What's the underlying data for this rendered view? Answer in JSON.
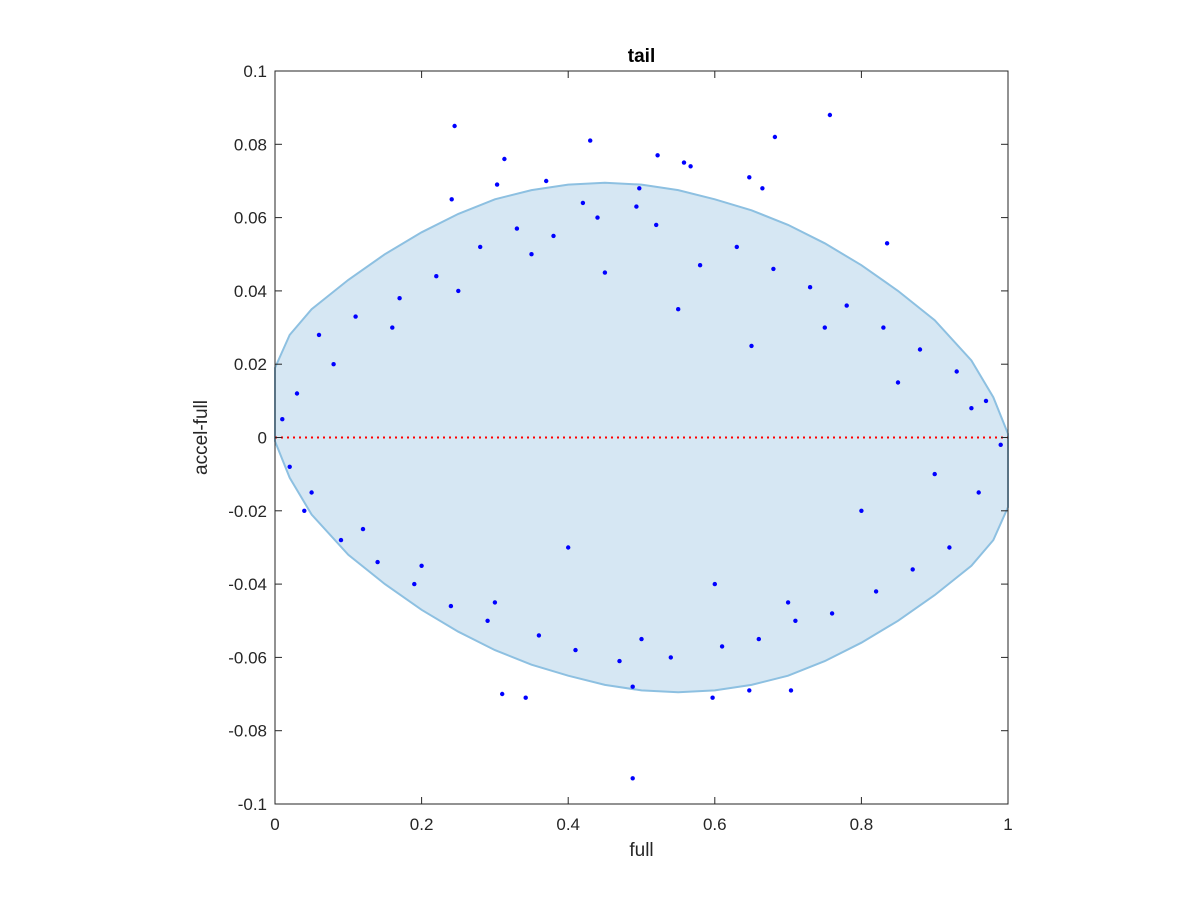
{
  "chart_data": {
    "type": "scatter",
    "title": "tail",
    "xlabel": "full",
    "ylabel": "accel-full",
    "xlim": [
      0,
      1
    ],
    "ylim": [
      -0.1,
      0.1
    ],
    "xticks": [
      0,
      0.2,
      0.4,
      0.6,
      0.8,
      1
    ],
    "xtick_labels": [
      "0",
      "0.2",
      "0.4",
      "0.6",
      "0.8",
      "1"
    ],
    "yticks": [
      0.1,
      0.08,
      0.06,
      0.04,
      0.02,
      0,
      -0.02,
      -0.04,
      -0.06,
      -0.08,
      -0.1
    ],
    "ytick_labels": [
      "0.1",
      "0.08",
      "0.06",
      "0.04",
      "0.02",
      "0",
      "-0.02",
      "-0.04",
      "-0.06",
      "-0.08",
      "-0.1"
    ],
    "grid": false,
    "marker_color": "#0000ff",
    "zero_line": {
      "y": 0,
      "color": "#ff0000",
      "style": "dotted"
    },
    "region": {
      "shape": "ellipse",
      "fill": "#d6e7f3",
      "edge": "#8dc0e1",
      "upper_boundary": [
        [
          0,
          0.019
        ],
        [
          0.02,
          0.028
        ],
        [
          0.05,
          0.035
        ],
        [
          0.1,
          0.043
        ],
        [
          0.15,
          0.05
        ],
        [
          0.2,
          0.056
        ],
        [
          0.25,
          0.061
        ],
        [
          0.3,
          0.065
        ],
        [
          0.35,
          0.0675
        ],
        [
          0.4,
          0.069
        ],
        [
          0.45,
          0.0695
        ],
        [
          0.5,
          0.069
        ],
        [
          0.55,
          0.0675
        ],
        [
          0.6,
          0.065
        ],
        [
          0.65,
          0.062
        ],
        [
          0.7,
          0.058
        ],
        [
          0.75,
          0.053
        ],
        [
          0.8,
          0.047
        ],
        [
          0.85,
          0.04
        ],
        [
          0.9,
          0.032
        ],
        [
          0.95,
          0.021
        ],
        [
          0.98,
          0.011
        ],
        [
          1.0,
          0.001
        ]
      ],
      "lower_boundary": [
        [
          1.0,
          -0.019
        ],
        [
          0.98,
          -0.028
        ],
        [
          0.95,
          -0.035
        ],
        [
          0.9,
          -0.043
        ],
        [
          0.85,
          -0.05
        ],
        [
          0.8,
          -0.056
        ],
        [
          0.75,
          -0.061
        ],
        [
          0.7,
          -0.065
        ],
        [
          0.65,
          -0.0675
        ],
        [
          0.6,
          -0.069
        ],
        [
          0.55,
          -0.0695
        ],
        [
          0.5,
          -0.069
        ],
        [
          0.45,
          -0.0675
        ],
        [
          0.4,
          -0.065
        ],
        [
          0.35,
          -0.062
        ],
        [
          0.3,
          -0.058
        ],
        [
          0.25,
          -0.053
        ],
        [
          0.2,
          -0.047
        ],
        [
          0.15,
          -0.04
        ],
        [
          0.1,
          -0.032
        ],
        [
          0.05,
          -0.021
        ],
        [
          0.02,
          -0.011
        ],
        [
          0.0,
          -0.001
        ]
      ]
    },
    "series": [
      {
        "x": [
          0.245,
          0.43,
          0.757,
          0.682,
          0.313,
          0.522,
          0.303,
          0.567,
          0.37,
          0.558,
          0.497,
          0.665,
          0.647,
          0.835,
          0.241,
          0.42,
          0.493,
          0.31,
          0.342,
          0.488,
          0.647,
          0.597,
          0.704,
          0.488,
          0.01,
          0.02,
          0.03,
          0.05,
          0.08,
          0.12,
          0.16,
          0.2,
          0.25,
          0.3,
          0.35,
          0.4,
          0.45,
          0.5,
          0.55,
          0.6,
          0.65,
          0.7,
          0.75,
          0.8,
          0.85,
          0.9,
          0.95,
          0.99,
          0.06,
          0.11,
          0.17,
          0.22,
          0.28,
          0.33,
          0.38,
          0.44,
          0.52,
          0.58,
          0.63,
          0.68,
          0.73,
          0.78,
          0.83,
          0.88,
          0.93,
          0.97,
          0.04,
          0.09,
          0.14,
          0.19,
          0.24,
          0.29,
          0.36,
          0.41,
          0.47,
          0.54,
          0.61,
          0.66,
          0.71,
          0.76,
          0.82,
          0.87,
          0.92,
          0.96
        ],
        "y": [
          0.085,
          0.081,
          0.088,
          0.082,
          0.076,
          0.077,
          0.069,
          0.074,
          0.07,
          0.075,
          0.068,
          0.068,
          0.071,
          0.053,
          0.065,
          0.064,
          0.063,
          -0.07,
          -0.071,
          -0.068,
          -0.069,
          -0.071,
          -0.069,
          -0.093,
          0.005,
          -0.008,
          0.012,
          -0.015,
          0.02,
          -0.025,
          0.03,
          -0.035,
          0.04,
          -0.045,
          0.05,
          -0.03,
          0.045,
          -0.055,
          0.035,
          -0.04,
          0.025,
          -0.045,
          0.03,
          -0.02,
          0.015,
          -0.01,
          0.008,
          -0.002,
          0.028,
          0.033,
          0.038,
          0.044,
          0.052,
          0.057,
          0.055,
          0.06,
          0.058,
          0.047,
          0.052,
          0.046,
          0.041,
          0.036,
          0.03,
          0.024,
          0.018,
          0.01,
          -0.02,
          -0.028,
          -0.034,
          -0.04,
          -0.046,
          -0.05,
          -0.054,
          -0.058,
          -0.061,
          -0.06,
          -0.057,
          -0.055,
          -0.05,
          -0.048,
          -0.042,
          -0.036,
          -0.03,
          -0.015
        ]
      }
    ]
  }
}
